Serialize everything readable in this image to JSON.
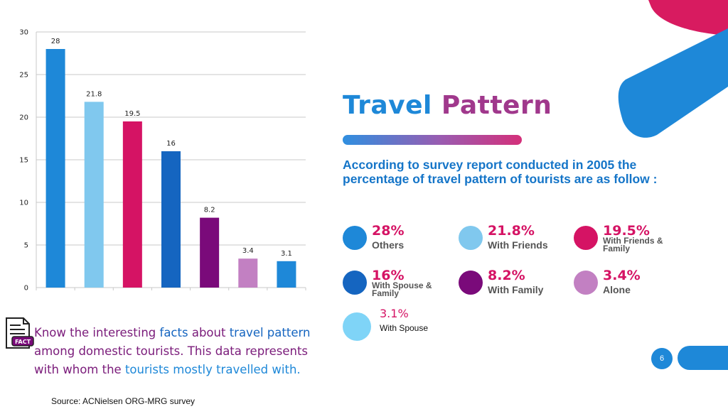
{
  "colors": {
    "blue": "#1e88d8",
    "light_blue": "#80c8ee",
    "magenta": "#d51364",
    "dark_blue": "#1565c0",
    "purple": "#7a0a7a",
    "lilac": "#c280c2",
    "sky": "#7fd4f7",
    "deco_pink": "#d81b60",
    "deco_blue": "#1e88d8"
  },
  "chart_data": {
    "type": "bar",
    "categories": [
      "Others",
      "With Friends",
      "With Friends & Family",
      "With Spouse & Family",
      "With Family",
      "Alone",
      "With Spouse"
    ],
    "values": [
      28,
      21.8,
      19.5,
      16,
      8.2,
      3.4,
      3.1
    ],
    "value_labels": [
      "28",
      "21.8",
      "19.5",
      "16",
      "8.2",
      "3.4",
      "3.1"
    ],
    "bar_colors": [
      "#1e88d8",
      "#80c8ee",
      "#d51364",
      "#1565c0",
      "#7a0a7a",
      "#c280c2",
      "#1e88d8"
    ],
    "yticks": [
      "0",
      "5",
      "10",
      "15",
      "20",
      "25",
      "30"
    ],
    "ylim": [
      0,
      30
    ],
    "grid": true,
    "title": "",
    "xlabel": "",
    "ylabel": ""
  },
  "slide": {
    "title_part1": "Travel",
    "title_part2": "Pattern",
    "intro": "According to survey report conducted in 2005 the percentage of travel pattern of tourists are as follow :",
    "legend": [
      {
        "pct": "28%",
        "label": "Others",
        "color": "#1e88d8"
      },
      {
        "pct": "21.8%",
        "label": "With Friends",
        "color": "#80c8ee"
      },
      {
        "pct": "19.5%",
        "label": "With Friends & Family",
        "color": "#d51364"
      },
      {
        "pct": "16%",
        "label": "With Spouse & Family",
        "color": "#1565c0"
      },
      {
        "pct": "8.2%",
        "label": "With Family",
        "color": "#7a0a7a"
      },
      {
        "pct": "3.4%",
        "label": "Alone",
        "color": "#c280c2"
      },
      {
        "pct": "3.1%",
        "label": "With Spouse",
        "color": "#7fd4f7"
      }
    ],
    "fact": {
      "icon_label": "FACT",
      "t1": "Know the interesting",
      "t2": "facts",
      "t3": "about",
      "t4": "travel pattern",
      "t5": "among domestic tourists. This data represents with whom the",
      "t6": "tourists mostly travelled with."
    },
    "source": "Source: ACNielsen ORG-MRG survey",
    "page_number": "6"
  }
}
